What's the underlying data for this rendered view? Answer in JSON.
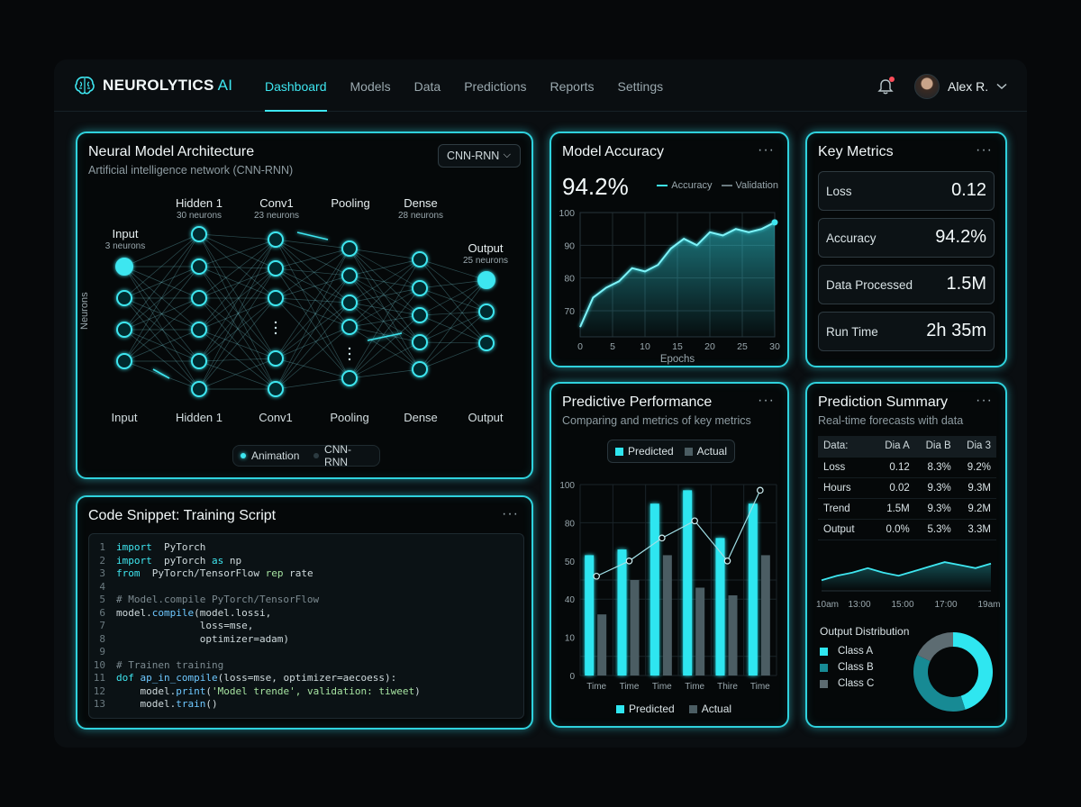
{
  "header": {
    "brand": "NEUROLYTICS",
    "brand_suffix": "AI",
    "nav": [
      "Dashboard",
      "Models",
      "Data",
      "Predictions",
      "Reports",
      "Settings"
    ],
    "active_nav": "Dashboard",
    "user_name": "Alex R.",
    "icons": [
      "brain-logo-icon",
      "bell-icon",
      "chevron-down-icon"
    ]
  },
  "architecture": {
    "title": "Neural Model Architecture",
    "subtitle": "Artificial intelligence network (CNN-RNN)",
    "dropdown": "CNN-RNN",
    "y_label": "Neurons",
    "layers_top": [
      {
        "name": "Input",
        "count": "3 neurons"
      },
      {
        "name": "Hidden 1",
        "count": "30 neurons"
      },
      {
        "name": "Conv1",
        "count": "23 neurons"
      },
      {
        "name": "Pooling",
        "count": ""
      },
      {
        "name": "Dense",
        "count": "28 neurons"
      },
      {
        "name": "Output",
        "count": "25 neurons"
      }
    ],
    "layers_bottom": [
      "Input",
      "Hidden 1",
      "Conv1",
      "Pooling",
      "Dense",
      "Output"
    ],
    "toggles": [
      {
        "label": "Animation",
        "color": "#3ee6f0"
      },
      {
        "label": "CNN-RNN",
        "color": "#2b3a40"
      }
    ]
  },
  "accuracy": {
    "title": "Model Accuracy",
    "value": "94.2%",
    "legend": [
      "Accuracy",
      "Validation"
    ],
    "chart_data": {
      "type": "area",
      "x": [
        0,
        2,
        4,
        6,
        8,
        10,
        12,
        14,
        16,
        18,
        20,
        22,
        24,
        26,
        28,
        30
      ],
      "values": [
        65,
        74,
        77,
        79,
        83,
        82,
        84,
        89,
        92,
        90,
        94,
        93,
        95,
        94,
        95,
        97
      ],
      "xlabel": "Epochs",
      "x_ticks": [
        "0",
        "5",
        "10",
        "15",
        "20",
        "25",
        "30"
      ],
      "y_ticks": [
        "100",
        "90",
        "80",
        "70"
      ],
      "xlim": [
        0,
        30
      ],
      "ylim": [
        62,
        100
      ]
    }
  },
  "metrics": {
    "title": "Key Metrics",
    "items": [
      {
        "label": "Loss",
        "value": "0.12"
      },
      {
        "label": "Accuracy",
        "value": "94.2%"
      },
      {
        "label": "Data Processed",
        "value": "1.5M"
      },
      {
        "label": "Run Time",
        "value": "2h 35m"
      }
    ]
  },
  "code": {
    "title": "Code Snippet: Training Script",
    "lines": [
      [
        [
          "kw",
          "import"
        ],
        [
          "",
          "  PyTorch"
        ]
      ],
      [
        [
          "kw",
          "import"
        ],
        [
          "",
          "  pyTorch "
        ],
        [
          "kw",
          "as"
        ],
        [
          "",
          " np"
        ]
      ],
      [
        [
          "kw",
          "from"
        ],
        [
          "",
          "  PyTorch/TensorFlow "
        ],
        [
          "str",
          "rep"
        ],
        [
          "",
          " rate"
        ]
      ],
      [
        [
          "",
          ""
        ]
      ],
      [
        [
          "cm",
          "# Model.compile PyTorch/TensorFlow"
        ]
      ],
      [
        [
          "",
          "model."
        ],
        [
          "fn",
          "compile"
        ],
        [
          "",
          "(model.lossi,"
        ]
      ],
      [
        [
          "",
          "              loss=mse,"
        ]
      ],
      [
        [
          "",
          "              optimizer=adam)"
        ]
      ],
      [
        [
          "",
          ""
        ]
      ],
      [
        [
          "cm",
          "# Trainen training"
        ]
      ],
      [
        [
          "kw",
          "dof"
        ],
        [
          "",
          " "
        ],
        [
          "fn",
          "ap_in_compile"
        ],
        [
          "",
          "(loss=mse, optimizer=aecoess):"
        ]
      ],
      [
        [
          "",
          "    model."
        ],
        [
          "fn",
          "print"
        ],
        [
          "",
          "("
        ],
        [
          "str",
          "'Model trende', validation: tiweet"
        ],
        [
          "",
          ")"
        ]
      ],
      [
        [
          "",
          "    model."
        ],
        [
          "fn",
          "train"
        ],
        [
          "",
          "()"
        ]
      ]
    ]
  },
  "predictive": {
    "title": "Predictive Performance",
    "subtitle": "Comparing and metrics of key metrics",
    "legend_top": [
      "Predicted",
      "Actual"
    ],
    "legend_bottom": [
      "Predicted",
      "Actual"
    ],
    "colors": {
      "predicted": "#2fe6f0",
      "actual": "#4b5d63",
      "line": "#9fdfe6"
    },
    "chart_data": {
      "type": "bar",
      "categories": [
        "Time",
        "Time",
        "Time",
        "Time",
        "Thire",
        "Time"
      ],
      "series": [
        {
          "name": "Predicted",
          "values": [
            63,
            66,
            90,
            97,
            72,
            90
          ]
        },
        {
          "name": "Actual",
          "values": [
            32,
            50,
            63,
            46,
            42,
            63
          ]
        }
      ],
      "line_values": [
        52,
        60,
        72,
        81,
        60,
        97
      ],
      "y_ticks": [
        "100",
        "80",
        "50",
        "40",
        "10",
        "0"
      ],
      "ylim": [
        0,
        100
      ]
    }
  },
  "summary": {
    "title": "Prediction Summary",
    "subtitle": "Real-time forecasts with data",
    "table_header": [
      "Data:",
      "Dia A",
      "Dia B",
      "Dia 3"
    ],
    "table_rows": [
      [
        "Loss",
        "0.12",
        "8.3%",
        "9.2%"
      ],
      [
        "Hours",
        "0.02",
        "9.3%",
        "9.3M"
      ],
      [
        "Trend",
        "1.5M",
        "9.3%",
        "9.2M"
      ],
      [
        "Output",
        "0.0%",
        "5.3%",
        "3.3M"
      ]
    ],
    "trend_chart": {
      "type": "line",
      "x_ticks": [
        "10am",
        "13:00",
        "15:00",
        "17:00",
        "19am"
      ],
      "values": [
        22,
        25,
        27,
        30,
        27,
        25,
        28,
        31,
        34,
        32,
        30,
        33
      ]
    },
    "distribution_title": "Output Distribution",
    "distribution": {
      "type": "pie",
      "labels": [
        "Class A",
        "Class B",
        "Class C"
      ],
      "values": [
        45,
        37,
        18
      ],
      "colors": [
        "#2fe6f0",
        "#178a94",
        "#5d6c72"
      ]
    }
  }
}
